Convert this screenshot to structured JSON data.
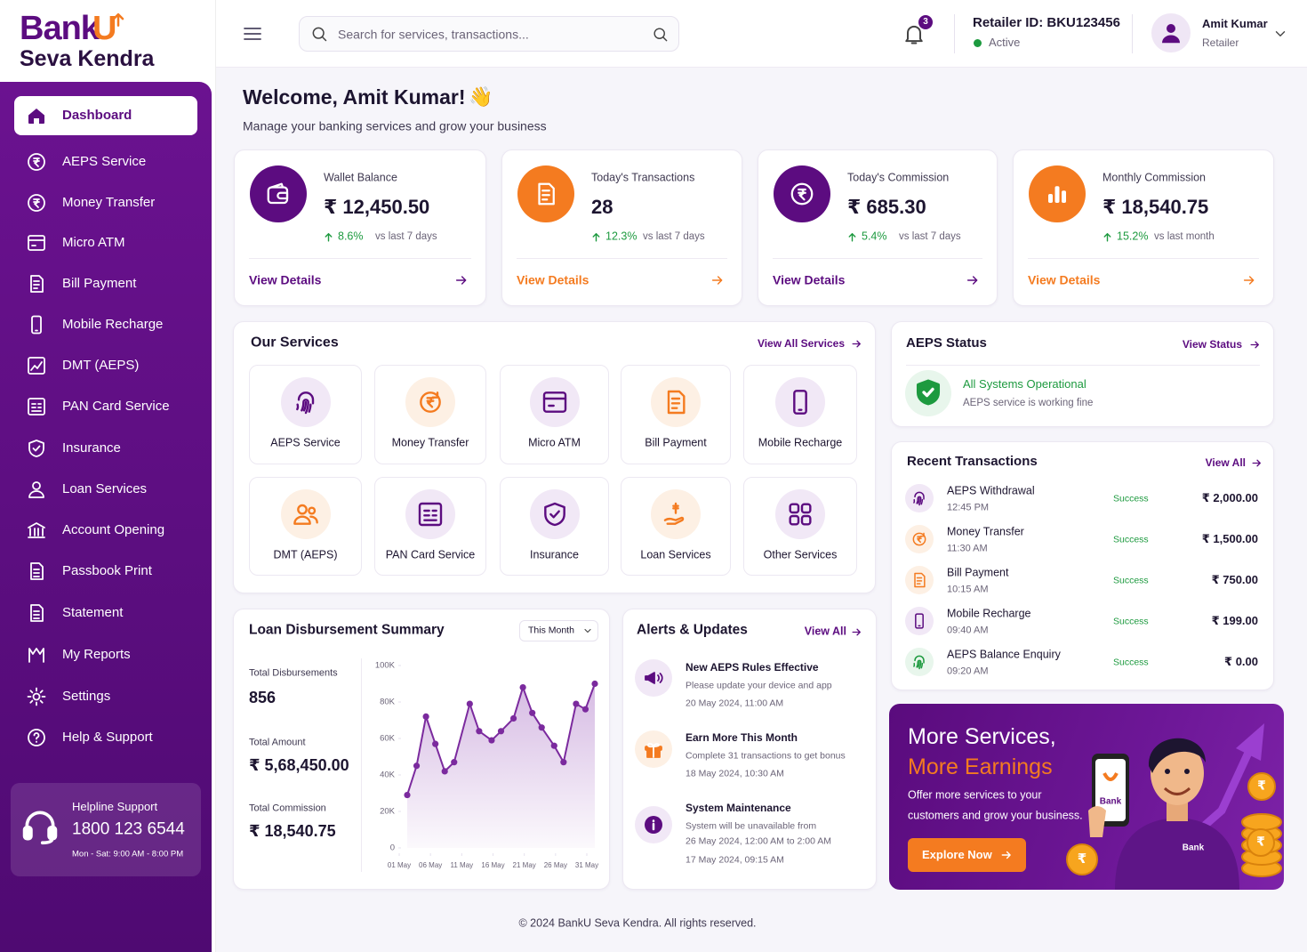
{
  "brand": {
    "word": "Bank",
    "mark": "U",
    "tagline": "Seva Kendra"
  },
  "sidebar": {
    "menu": [
      "Dashboard",
      "AEPS Service",
      "Money Transfer",
      "Micro ATM",
      "Bill Payment",
      "Mobile Recharge",
      "DMT (AEPS)",
      "PAN Card Service",
      "Insurance",
      "Loan Services",
      "Account Opening",
      "Passbook Print",
      "Statement",
      "My Reports",
      "Settings",
      "Help & Support"
    ],
    "helpline": {
      "title": "Helpline Support",
      "phone": "1800 123 6544",
      "hours": "Mon - Sat: 9:00 AM - 8:00 PM"
    }
  },
  "header": {
    "search_placeholder": "Search for services, transactions...",
    "notification_count": 3,
    "retailer_id": "Retailer ID: BKU123456",
    "status": "Active",
    "user_name": "Amit Kumar",
    "user_role": "Retailer"
  },
  "welcome": {
    "title": "Welcome, Amit Kumar!",
    "wave": "👋",
    "subtitle": "Manage your banking services and grow your business"
  },
  "stats": [
    {
      "label": "Wallet Balance",
      "value": "₹ 12,450.50",
      "change": "8.6%",
      "compare": "vs last 7 days",
      "link": "View Details"
    },
    {
      "label": "Today's Transactions",
      "value": "28",
      "change": "12.3%",
      "compare": "vs last 7 days",
      "link": "View Details"
    },
    {
      "label": "Today's Commission",
      "value": "₹ 685.30",
      "change": "5.4%",
      "compare": "vs last 7 days",
      "link": "View Details"
    },
    {
      "label": "Monthly Commission",
      "value": "₹ 18,540.75",
      "change": "15.2%",
      "compare": "vs last month",
      "link": "View Details"
    }
  ],
  "services": {
    "title": "Our Services",
    "link": "View All Services",
    "items": [
      "AEPS Service",
      "Money Transfer",
      "Micro ATM",
      "Bill Payment",
      "Mobile Recharge",
      "DMT (AEPS)",
      "PAN Card Service",
      "Insurance",
      "Loan Services",
      "Other Services"
    ]
  },
  "aeps_status": {
    "title": "AEPS Status",
    "link": "View Status",
    "status": "All Systems Operational",
    "message": "AEPS service is working fine"
  },
  "transactions": {
    "title": "Recent Transactions",
    "link": "View All",
    "items": [
      {
        "name": "AEPS Withdrawal",
        "time": "12:45 PM",
        "status": "Success",
        "amount": "₹ 2,000.00"
      },
      {
        "name": "Money Transfer",
        "time": "11:30 AM",
        "status": "Success",
        "amount": "₹ 1,500.00"
      },
      {
        "name": "Bill Payment",
        "time": "10:15 AM",
        "status": "Success",
        "amount": "₹ 750.00"
      },
      {
        "name": "Mobile Recharge",
        "time": "09:40 AM",
        "status": "Success",
        "amount": "₹ 199.00"
      },
      {
        "name": "AEPS Balance Enquiry",
        "time": "09:20 AM",
        "status": "Success",
        "amount": "₹ 0.00"
      }
    ]
  },
  "loan": {
    "title": "Loan Disbursement Summary",
    "period": "This Month",
    "summary": [
      {
        "label": "Total Disbursements",
        "value": "856"
      },
      {
        "label": "Total Amount",
        "value": "₹ 5,68,450.00"
      },
      {
        "label": "Total Commission",
        "value": "₹ 18,540.75"
      }
    ],
    "chart": {
      "type": "line",
      "color": "#7b2a9e",
      "x": [
        1,
        2.5,
        4,
        5.5,
        7,
        8.5,
        11,
        12.5,
        14.5,
        16,
        18,
        19.5,
        21,
        22.5,
        24.5,
        26,
        28,
        29.5,
        31
      ],
      "values": [
        29000,
        45000,
        72000,
        57000,
        42000,
        47000,
        79000,
        64000,
        59000,
        64000,
        71000,
        88000,
        74000,
        66000,
        56000,
        47000,
        79000,
        76000,
        90000
      ],
      "xlim": [
        1,
        31
      ],
      "xticks": [
        {
          "value": 1,
          "label": "01 May"
        },
        {
          "value": 6,
          "label": "06 May"
        },
        {
          "value": 11,
          "label": "11 May"
        },
        {
          "value": 16,
          "label": "16 May"
        },
        {
          "value": 21,
          "label": "21 May"
        },
        {
          "value": 26,
          "label": "26 May"
        },
        {
          "value": 31,
          "label": "31 May"
        }
      ],
      "ylim": [
        0,
        100000
      ],
      "yticks": [
        0,
        {
          "value": 20000,
          "label": "20K"
        },
        {
          "value": 40000,
          "label": "40K"
        },
        {
          "value": 60000,
          "label": "60K"
        },
        {
          "value": 80000,
          "label": "80K"
        },
        {
          "value": 100000,
          "label": "100K"
        }
      ],
      "grid": false
    }
  },
  "alerts": {
    "title": "Alerts & Updates",
    "link": "View All",
    "items": [
      {
        "title": "New AEPS Rules Effective",
        "desc": [
          "Please update your device and app"
        ],
        "time": "20 May 2024, 11:00 AM"
      },
      {
        "title": "Earn More This Month",
        "desc": [
          "Complete 31 transactions to get bonus"
        ],
        "time": "18 May 2024, 10:30 AM"
      },
      {
        "title": "System Maintenance",
        "desc": [
          "System will be unavailable from",
          "26 May 2024, 12:00 AM to 2:00 AM"
        ],
        "time": "17 May 2024, 09:15 AM"
      }
    ]
  },
  "promo": {
    "title_line1": "More Services,",
    "title_line2": "More Earnings",
    "text": [
      "Offer more services to your",
      "customers and grow your business."
    ],
    "button": "Explore Now",
    "illustration_brand": "Bank",
    "coin_symbol": "₹"
  },
  "footer": "© 2024 BankU Seva Kendra. All rights reserved."
}
